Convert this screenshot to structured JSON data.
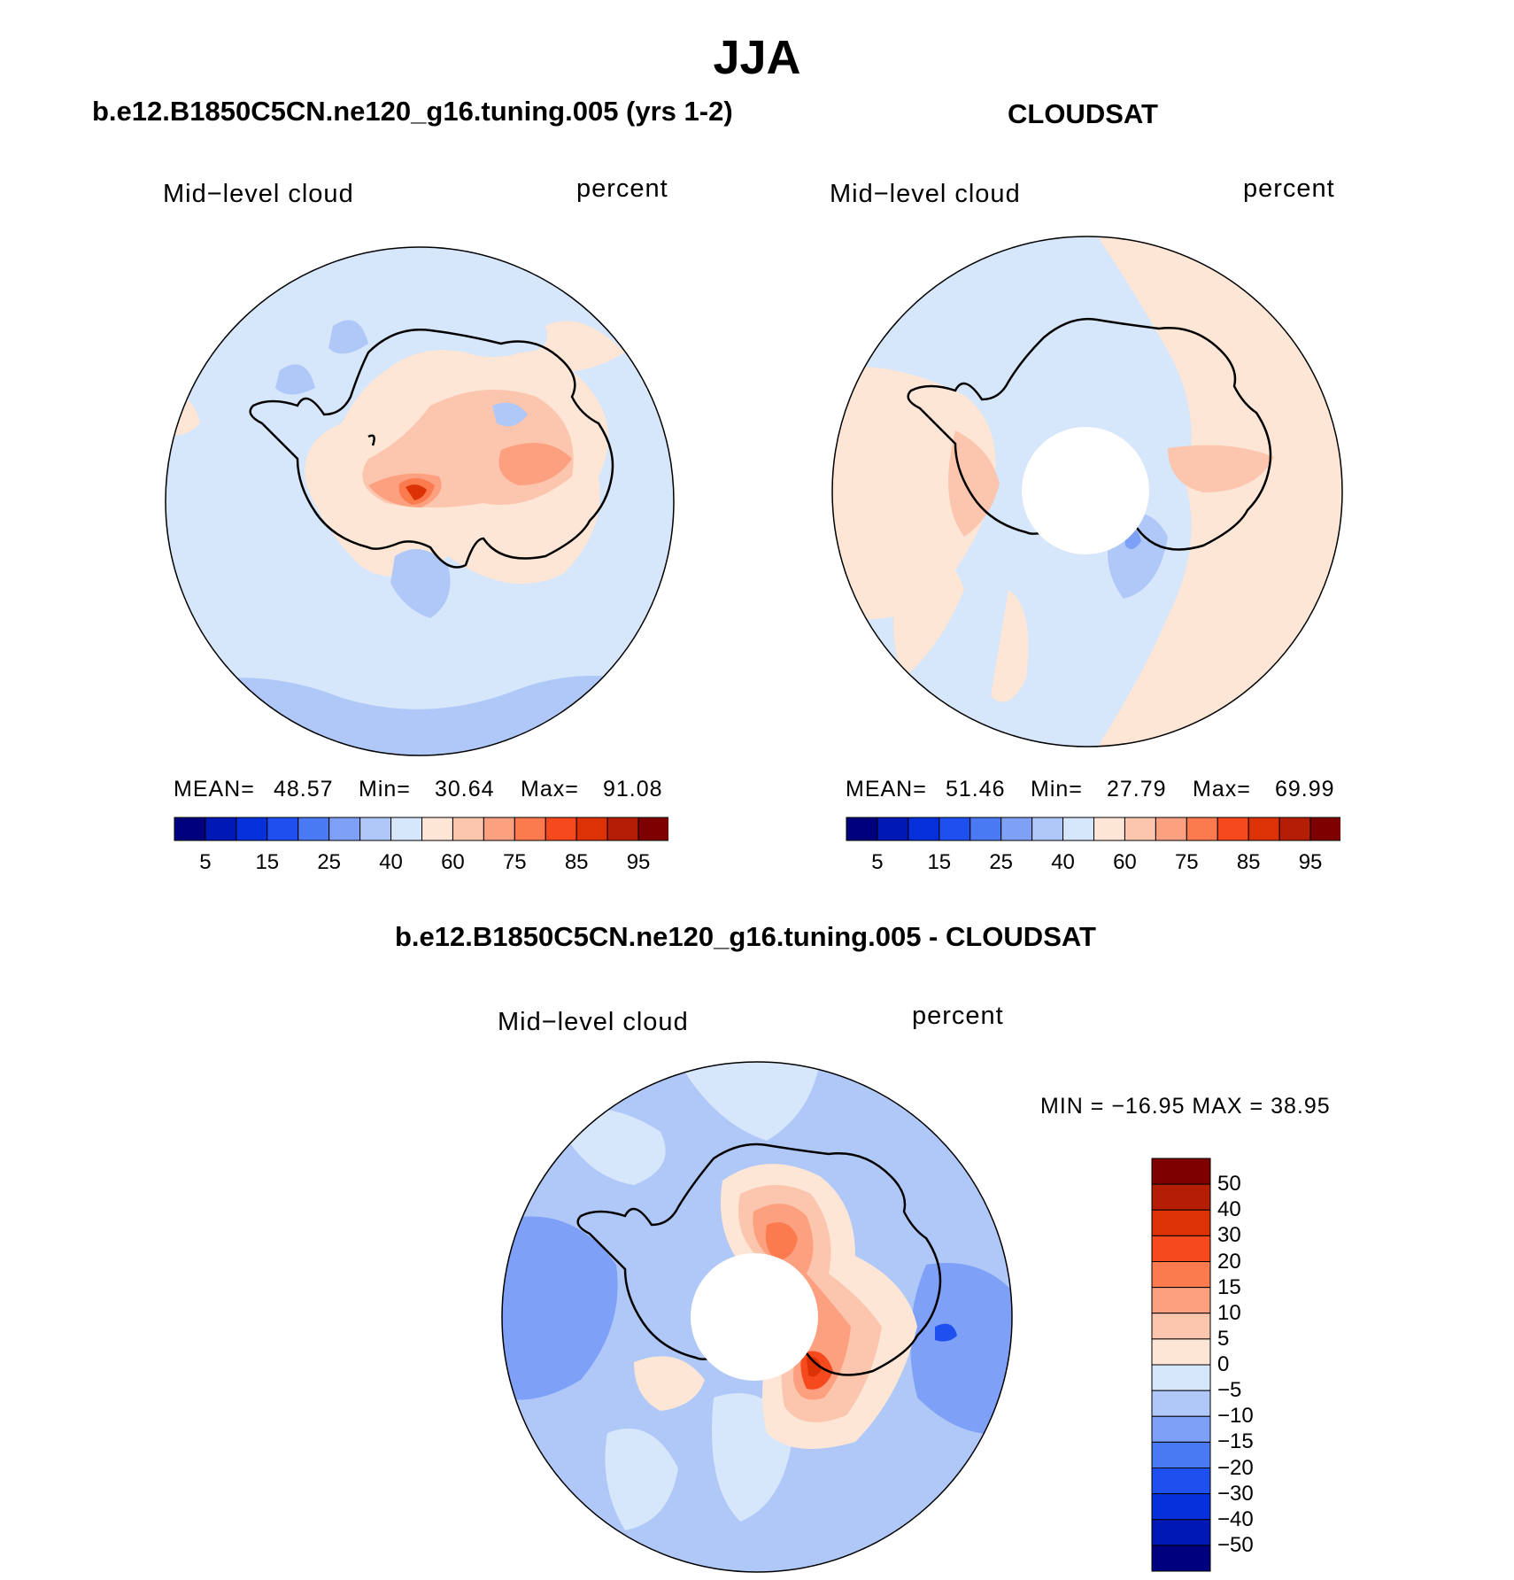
{
  "title": "JJA",
  "panels": [
    {
      "id": "model",
      "heading": "b.e12.B1850C5CN.ne120_g16.tuning.005 (yrs 1-2)",
      "variable": "Mid−level cloud",
      "units": "percent",
      "stats": {
        "mean_label": "MEAN=",
        "mean": "48.57",
        "min_label": "Min=",
        "min": "30.64",
        "max_label": "Max=",
        "max": "91.08"
      }
    },
    {
      "id": "obs",
      "heading": "CLOUDSAT",
      "variable": "Mid−level cloud",
      "units": "percent",
      "stats": {
        "mean_label": "MEAN=",
        "mean": "51.46",
        "min_label": "Min=",
        "min": "27.79",
        "max_label": "Max=",
        "max": "69.99"
      }
    },
    {
      "id": "diff",
      "heading": "b.e12.B1850C5CN.ne120_g16.tuning.005 - CLOUDSAT",
      "variable": "Mid−level cloud",
      "units": "percent",
      "stats_text": "MIN = −16.95 MAX =   38.95"
    }
  ],
  "colorbar_abs": {
    "colors": [
      "#00007e",
      "#0018b4",
      "#0530dc",
      "#1e50f0",
      "#4a7af3",
      "#7ea0f7",
      "#b0c8f8",
      "#d6e6fb",
      "#fde6d6",
      "#fcc6ae",
      "#fca080",
      "#fb7a4e",
      "#f64a1e",
      "#dc3205",
      "#b41e05",
      "#7e0000"
    ],
    "labels": [
      "5",
      "15",
      "25",
      "40",
      "60",
      "75",
      "85",
      "95"
    ]
  },
  "colorbar_diff": {
    "colors": [
      "#7e0000",
      "#b41e05",
      "#dc3205",
      "#f64a1e",
      "#fb7a4e",
      "#fca080",
      "#fcc6ae",
      "#fde6d6",
      "#d6e6fb",
      "#b0c8f8",
      "#7ea0f7",
      "#4a7af3",
      "#1e50f0",
      "#0530dc",
      "#0018b4",
      "#00007e"
    ],
    "labels": [
      "50",
      "40",
      "30",
      "20",
      "15",
      "10",
      "5",
      "0",
      "−5",
      "−10",
      "−15",
      "−20",
      "−30",
      "−40",
      "−50"
    ]
  }
}
